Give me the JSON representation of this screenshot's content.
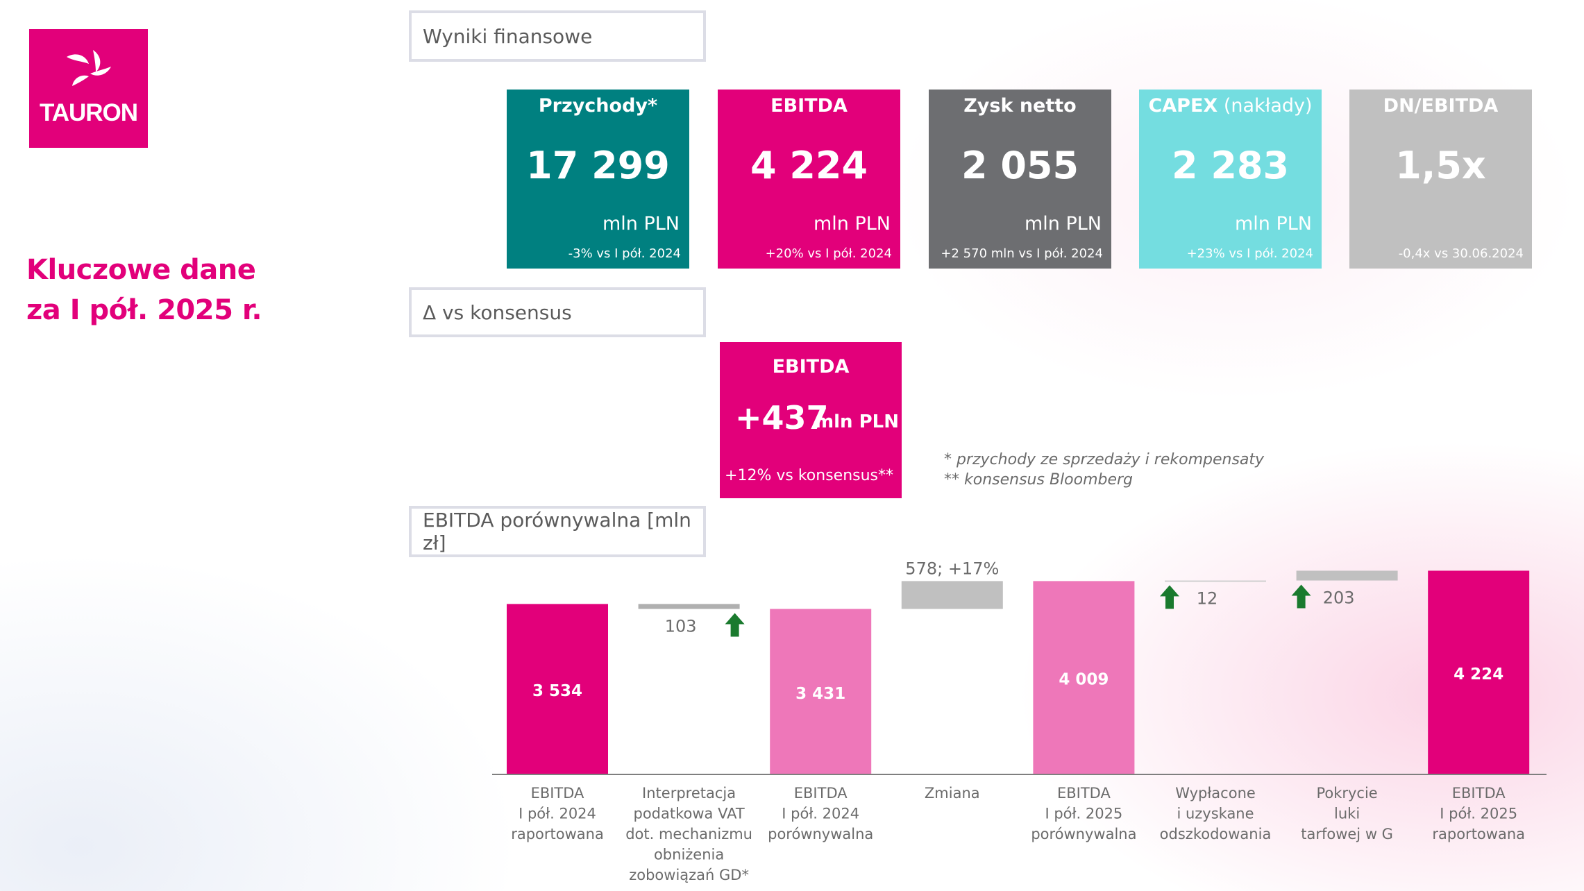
{
  "logo": {
    "text": "TAURON"
  },
  "page_title": "Kluczowe dane\nza I pół. 2025 r.",
  "sections": {
    "financial": "Wyniki finansowe",
    "consensus": "Δ vs konsensus",
    "chart": "EBITDA porównywalna [mln zł]"
  },
  "kpis": [
    {
      "title": "Przychody*",
      "title_suffix": "",
      "value": "17 299",
      "unit": "mln PLN",
      "delta": "-3% vs I pół. 2024",
      "color": "#008080"
    },
    {
      "title": "EBITDA",
      "title_suffix": "",
      "value": "4 224",
      "unit": "mln PLN",
      "delta": "+20% vs I pół. 2024",
      "color": "#e2007a"
    },
    {
      "title": "Zysk netto",
      "title_suffix": "",
      "value": "2 055",
      "unit": "mln PLN",
      "delta": "+2 570 mln vs I pół. 2024",
      "color": "#6d6e71"
    },
    {
      "title": "CAPEX",
      "title_suffix": " (nakłady)",
      "value": "2 283",
      "unit": "mln PLN",
      "delta": "+23% vs I pół. 2024",
      "color": "#74dde0"
    },
    {
      "title": "DN/EBITDA",
      "title_suffix": "",
      "value": "1,5x",
      "unit": "",
      "delta": "-0,4x  vs  30.06.2024",
      "color": "#c0c0c0"
    }
  ],
  "consensus": {
    "title": "EBITDA",
    "value": "+437",
    "unit": "mln PLN",
    "delta": "+12% vs konsensus**"
  },
  "footnotes": [
    "* przychody ze sprzedaży i rekompensaty",
    "** konsensus Bloomberg"
  ],
  "chart_data": {
    "type": "bar",
    "subtype": "waterfall",
    "categories": [
      "EBITDA\nI pół. 2024\nraportowana",
      "Interpretacja\npodatkowa VAT\ndot. mechanizmu\nobniżenia\nzobowiązań GD*",
      "EBITDA\nI pół. 2024\nporównywalna",
      "Zmiana",
      "EBITDA\nI pół. 2025\nporównywalna",
      "Wypłacone\ni uzyskane\nodszkodowania",
      "Pokrycie\nluki\ntarfowej w G",
      "EBITDA\nI pół. 2025\nraportowana"
    ],
    "bars": [
      {
        "kind": "total",
        "start": 0,
        "end": 3534,
        "label": "3 534",
        "color": "#e2007a"
      },
      {
        "kind": "step",
        "start": 3534,
        "end": 3431,
        "label": "103",
        "arrow": "up",
        "color": "#b0b0b0"
      },
      {
        "kind": "total",
        "start": 0,
        "end": 3431,
        "label": "3 431",
        "color": "#ee77b9"
      },
      {
        "kind": "step",
        "start": 3431,
        "end": 4009,
        "label": "578; +17%",
        "color": "#c0c0c0"
      },
      {
        "kind": "total",
        "start": 0,
        "end": 4009,
        "label": "4 009",
        "color": "#ee77b9"
      },
      {
        "kind": "step",
        "start": 4009,
        "end": 4021,
        "label": "12",
        "arrow": "up",
        "color": "#d0d0d0"
      },
      {
        "kind": "step",
        "start": 4021,
        "end": 4224,
        "label": "203",
        "arrow": "up",
        "color": "#c0c0c0"
      },
      {
        "kind": "total",
        "start": 0,
        "end": 4224,
        "label": "4 224",
        "color": "#e2007a"
      }
    ],
    "arrow_color": "#1a7a2e",
    "axis_color": "#7f7f7f",
    "grid": false,
    "legend": "none"
  }
}
